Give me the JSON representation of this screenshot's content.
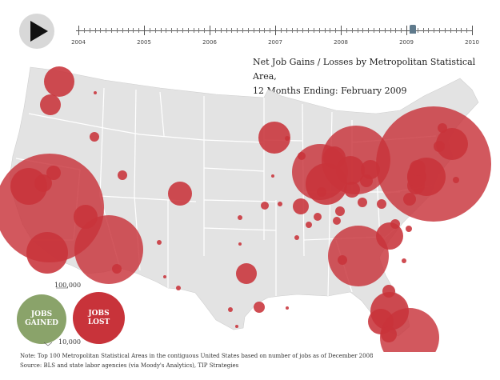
{
  "timeline": {
    "years": [
      "2004",
      "2005",
      "2006",
      "2007",
      "2008",
      "2009",
      "2010"
    ],
    "current_month": "February 2009"
  },
  "title": {
    "line1": "Net Job Gains / Losses by  Metropolitan Statistical Area,",
    "line2": "12 Months Ending:  February  2009"
  },
  "legend": {
    "gained_label": "JOBS\nGAINED",
    "lost_label": "JOBS\nLOST",
    "scale_large": "100,000",
    "scale_small": "10,000"
  },
  "notes": {
    "note": "Note: Top 100 Metropolitan Statistical Areas in the contiguous United States based on number of jobs as of December 2008",
    "source": "Source:  BLS and state labor agencies (via Moody's Analytics), TIP Strategies"
  },
  "colors": {
    "loss": "#c8333a",
    "gain": "#8aa36a",
    "land": "#e3e3e3",
    "border": "#ffffff"
  },
  "icons": {
    "play": "play-icon"
  }
}
